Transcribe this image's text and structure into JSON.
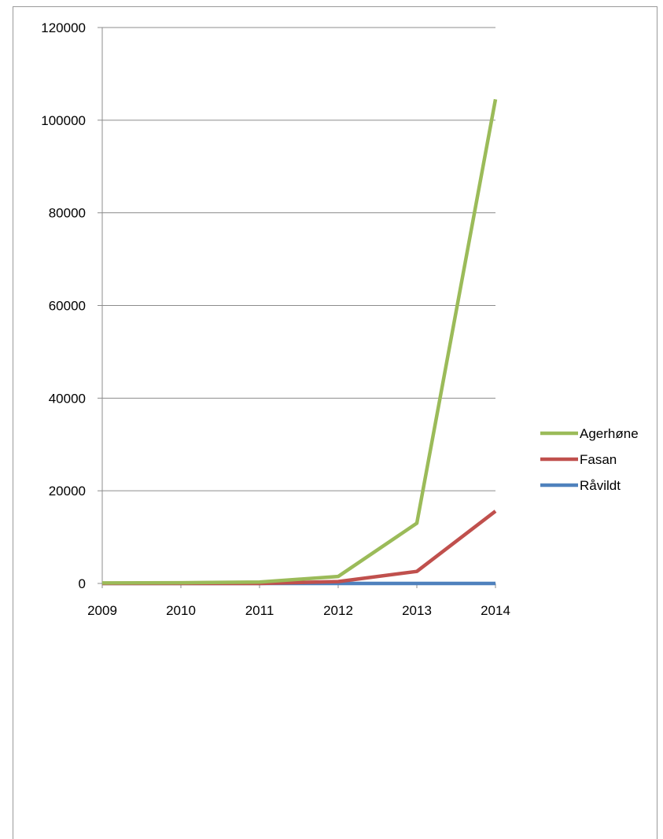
{
  "chart_data": {
    "type": "line",
    "title": "",
    "xlabel": "",
    "ylabel": "",
    "x": [
      "2009",
      "2010",
      "2011",
      "2012",
      "2013",
      "2014"
    ],
    "ylim": [
      0,
      120000
    ],
    "yticks": [
      0,
      20000,
      40000,
      60000,
      80000,
      100000,
      120000
    ],
    "grid": true,
    "legend_position": "right",
    "series": [
      {
        "name": "Agerhøne",
        "color": "#9bbb59",
        "values": [
          100,
          150,
          300,
          1500,
          13000,
          104500
        ]
      },
      {
        "name": "Fasan",
        "color": "#c0504d",
        "values": [
          0,
          0,
          0,
          400,
          2600,
          15600
        ]
      },
      {
        "name": "Råvildt",
        "color": "#4f81bd",
        "values": [
          0,
          0,
          0,
          0,
          0,
          0
        ]
      }
    ]
  }
}
